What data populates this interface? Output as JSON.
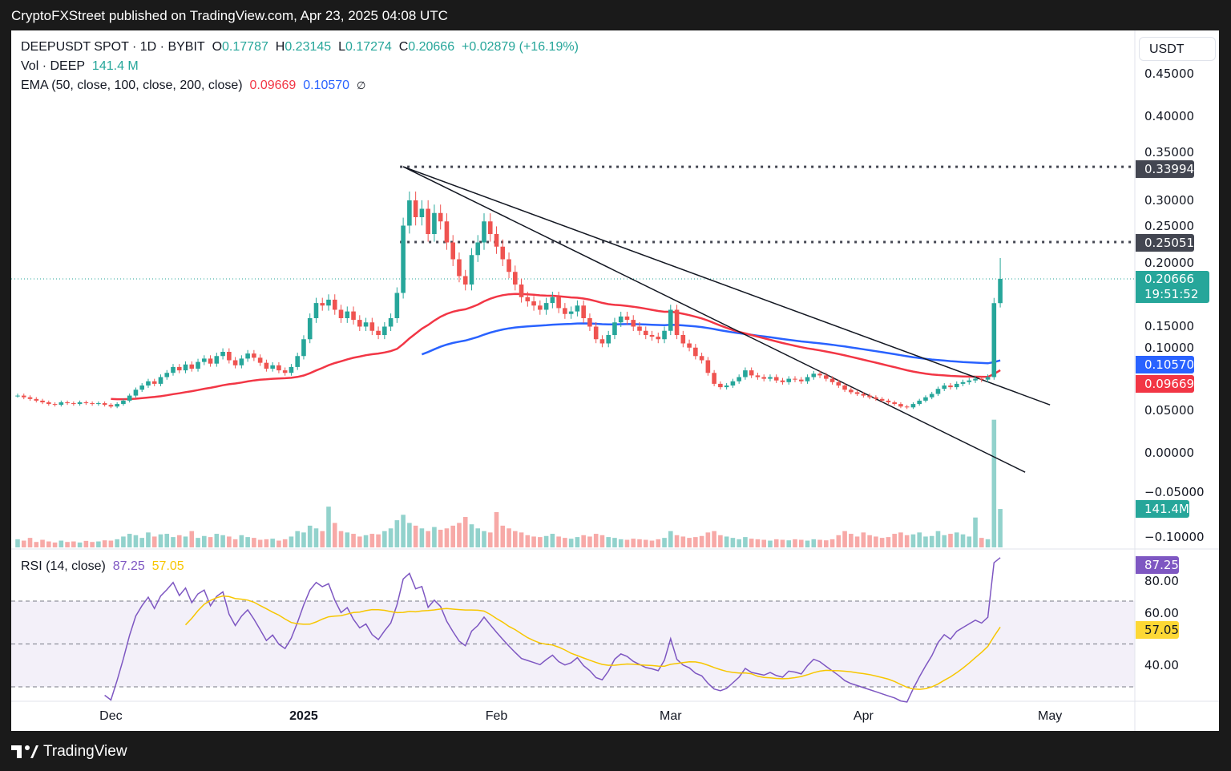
{
  "header": {
    "published": "CryptoFXStreet published on TradingView.com, Apr 23, 2025 04:08 UTC"
  },
  "legend": {
    "symbol": "DEEPUSDT SPOT · 1D · BYBIT",
    "o_label": "O",
    "o": "0.17787",
    "h_label": "H",
    "h": "0.23145",
    "l_label": "L",
    "l": "0.17274",
    "c_label": "C",
    "c": "0.20666",
    "change": "+0.02879 (+16.19%)",
    "vol_label": "Vol · DEEP",
    "vol": "141.4 M",
    "ema_label": "EMA (50, close, 100, close, 200, close)",
    "ema50": "0.09669",
    "ema100": "0.10570",
    "ema200": "∅",
    "rsi_label": "RSI (14, close)",
    "rsi": "87.25",
    "rsi_ma": "57.05"
  },
  "axis": {
    "unit": "USDT",
    "price_ticks": [
      "0.45000",
      "0.40000",
      "0.35000",
      "0.30000",
      "0.25000",
      "0.20000",
      "0.15000",
      "0.10000",
      "0.05000",
      "0.00000",
      "−0.05000",
      "−0.10000"
    ],
    "rsi_ticks": [
      "80.00",
      "60.00",
      "40.00"
    ],
    "time_labels": [
      {
        "t": "Dec",
        "d": "2024-12-01",
        "bold": false
      },
      {
        "t": "2025",
        "d": "2025-01-01",
        "bold": true
      },
      {
        "t": "Feb",
        "d": "2025-02-01",
        "bold": false
      },
      {
        "t": "Mar",
        "d": "2025-03-01",
        "bold": false
      },
      {
        "t": "Apr",
        "d": "2025-04-01",
        "bold": false
      },
      {
        "t": "May",
        "d": "2025-05-01",
        "bold": false
      }
    ]
  },
  "tags": {
    "level1": "0.33994",
    "level2": "0.25051",
    "last": "0.20666",
    "countdown": "19:51:52",
    "ema100": "0.10570",
    "ema50": "0.09669",
    "vol": "141.4M",
    "rsi": "87.25",
    "rsi_ma": "57.05"
  },
  "footer": {
    "brand": "TradingView"
  },
  "colors": {
    "up": "#26a69a",
    "down": "#ef5350",
    "ema50": "#f23645",
    "ema100": "#2962ff",
    "rsi": "#7e57c2",
    "rsi_ma": "#f7c600",
    "level": "#434651"
  },
  "chart_data": {
    "type": "candlestick",
    "start_date": "2024-11-16",
    "end_date": "2025-04-23",
    "closes": [
      0.068,
      0.066,
      0.064,
      0.062,
      0.06,
      0.058,
      0.057,
      0.06,
      0.059,
      0.058,
      0.06,
      0.059,
      0.058,
      0.059,
      0.057,
      0.055,
      0.058,
      0.062,
      0.068,
      0.075,
      0.08,
      0.085,
      0.082,
      0.09,
      0.095,
      0.102,
      0.098,
      0.105,
      0.1,
      0.108,
      0.112,
      0.106,
      0.115,
      0.12,
      0.11,
      0.104,
      0.112,
      0.118,
      0.113,
      0.107,
      0.1,
      0.104,
      0.098,
      0.095,
      0.102,
      0.115,
      0.135,
      0.16,
      0.178,
      0.175,
      0.182,
      0.17,
      0.16,
      0.168,
      0.158,
      0.15,
      0.155,
      0.145,
      0.14,
      0.15,
      0.16,
      0.19,
      0.27,
      0.3,
      0.28,
      0.29,
      0.26,
      0.285,
      0.275,
      0.25,
      0.23,
      0.21,
      0.2,
      0.235,
      0.25,
      0.275,
      0.26,
      0.245,
      0.23,
      0.215,
      0.2,
      0.185,
      0.18,
      0.175,
      0.17,
      0.178,
      0.185,
      0.172,
      0.165,
      0.168,
      0.175,
      0.16,
      0.15,
      0.135,
      0.13,
      0.14,
      0.155,
      0.162,
      0.158,
      0.15,
      0.145,
      0.14,
      0.138,
      0.135,
      0.145,
      0.17,
      0.14,
      0.13,
      0.125,
      0.115,
      0.11,
      0.095,
      0.082,
      0.078,
      0.08,
      0.085,
      0.09,
      0.098,
      0.092,
      0.09,
      0.088,
      0.09,
      0.086,
      0.084,
      0.088,
      0.087,
      0.085,
      0.09,
      0.094,
      0.092,
      0.088,
      0.084,
      0.08,
      0.075,
      0.072,
      0.07,
      0.068,
      0.066,
      0.064,
      0.062,
      0.06,
      0.058,
      0.055,
      0.054,
      0.058,
      0.062,
      0.066,
      0.07,
      0.076,
      0.08,
      0.078,
      0.082,
      0.084,
      0.086,
      0.088,
      0.087,
      0.09,
      0.17787,
      0.20666
    ],
    "volumes_m": [
      30,
      25,
      35,
      20,
      28,
      22,
      18,
      25,
      20,
      22,
      18,
      24,
      20,
      22,
      26,
      25,
      30,
      40,
      50,
      45,
      35,
      55,
      40,
      48,
      50,
      38,
      45,
      40,
      60,
      35,
      42,
      38,
      50,
      45,
      40,
      30,
      45,
      38,
      35,
      28,
      30,
      32,
      25,
      30,
      40,
      60,
      55,
      80,
      70,
      60,
      150,
      90,
      60,
      55,
      50,
      40,
      45,
      50,
      48,
      60,
      70,
      100,
      120,
      90,
      80,
      70,
      60,
      75,
      65,
      70,
      80,
      90,
      112,
      85,
      70,
      60,
      55,
      130,
      80,
      70,
      60,
      55,
      45,
      40,
      38,
      42,
      50,
      40,
      35,
      32,
      38,
      45,
      40,
      50,
      45,
      38,
      35,
      30,
      28,
      32,
      30,
      28,
      25,
      30,
      35,
      60,
      45,
      40,
      35,
      38,
      42,
      55,
      60,
      45,
      40,
      35,
      30,
      38,
      32,
      30,
      28,
      25,
      30,
      28,
      26,
      30,
      28,
      25,
      30,
      28,
      26,
      30,
      45,
      60,
      50,
      40,
      55,
      45,
      40,
      35,
      38,
      50,
      55,
      45,
      48,
      55,
      40,
      42,
      60,
      45,
      50,
      55,
      48,
      40,
      110,
      35,
      30,
      470,
      141.4
    ],
    "price_levels": [
      0.33994,
      0.25051
    ],
    "trendlines": [
      {
        "from": [
          "2025-01-17",
          0.34
        ],
        "to": [
          "2025-05-01",
          0.057
        ]
      },
      {
        "from": [
          "2025-01-17",
          0.34
        ],
        "to": [
          "2025-04-27",
          -0.023
        ]
      }
    ],
    "ema_periods": [
      50,
      100
    ],
    "rsi_period": 14,
    "rsi_bands": [
      70,
      50,
      30
    ],
    "price_range": [
      -0.11,
      0.47
    ],
    "rsi_range": [
      22,
      95
    ]
  }
}
